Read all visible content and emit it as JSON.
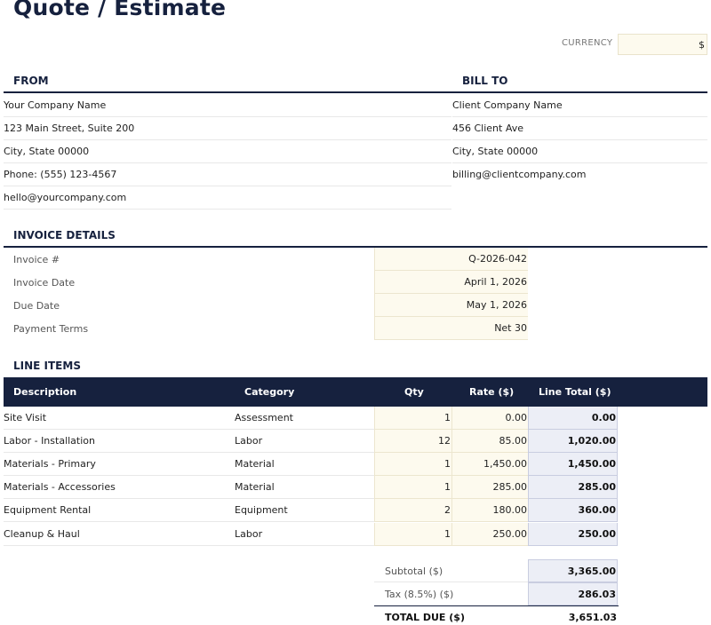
{
  "title": "Quote / Estimate",
  "currency": {
    "label": "CURRENCY",
    "value": "$"
  },
  "from": {
    "heading": "FROM",
    "lines": [
      "Your Company Name",
      "123 Main Street, Suite 200",
      "City, State 00000",
      "Phone: (555) 123-4567",
      "hello@yourcompany.com"
    ]
  },
  "bill_to": {
    "heading": "BILL TO",
    "lines": [
      "Client Company Name",
      "456 Client Ave",
      "City, State 00000",
      "billing@clientcompany.com"
    ]
  },
  "invoice_details": {
    "heading": "INVOICE DETAILS",
    "fields": [
      {
        "label": "Invoice #",
        "value": "Q-2026-042"
      },
      {
        "label": "Invoice Date",
        "value": "April 1, 2026"
      },
      {
        "label": "Due Date",
        "value": "May 1, 2026"
      },
      {
        "label": "Payment Terms",
        "value": "Net 30"
      }
    ]
  },
  "line_items": {
    "heading": "LINE ITEMS",
    "columns": [
      "Description",
      "Category",
      "Qty",
      "Rate ($)",
      "Line Total ($)"
    ],
    "rows": [
      {
        "description": "Site Visit",
        "category": "Assessment",
        "qty": "1",
        "rate": "0.00",
        "total": "0.00"
      },
      {
        "description": "Labor - Installation",
        "category": "Labor",
        "qty": "12",
        "rate": "85.00",
        "total": "1,020.00"
      },
      {
        "description": "Materials - Primary",
        "category": "Material",
        "qty": "1",
        "rate": "1,450.00",
        "total": "1,450.00"
      },
      {
        "description": "Materials - Accessories",
        "category": "Material",
        "qty": "1",
        "rate": "285.00",
        "total": "285.00"
      },
      {
        "description": "Equipment Rental",
        "category": "Equipment",
        "qty": "2",
        "rate": "180.00",
        "total": "360.00"
      },
      {
        "description": "Cleanup & Haul",
        "category": "Labor",
        "qty": "1",
        "rate": "250.00",
        "total": "250.00"
      }
    ]
  },
  "totals": {
    "subtotal_label": "Subtotal ($)",
    "subtotal": "3,365.00",
    "tax_label": "Tax (8.5%) ($)",
    "tax": "286.03",
    "total_label": "TOTAL DUE ($)",
    "total": "3,651.03"
  }
}
